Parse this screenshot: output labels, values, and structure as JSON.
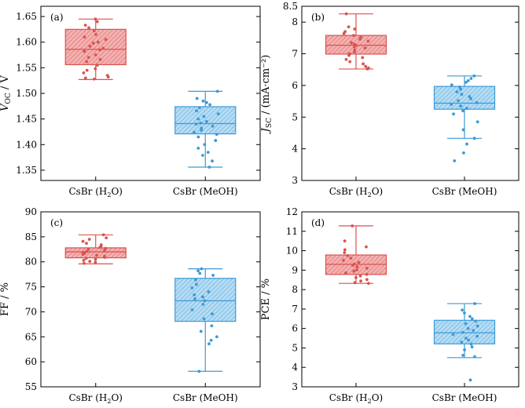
{
  "chart_data": [
    {
      "type": "box",
      "panel_label": "(a)",
      "ylabel": {
        "main": "V",
        "sub": "OC",
        "unit": " / V"
      },
      "ylim": [
        1.33,
        1.67
      ],
      "yticks": [
        1.35,
        1.4,
        1.45,
        1.5,
        1.55,
        1.6,
        1.65
      ],
      "tick_decimals": 2,
      "categories": [
        {
          "main": "CsBr (H",
          "sub": "2",
          "tail": "O)"
        },
        {
          "main": "CsBr (MeOH)",
          "sub": "",
          "tail": ""
        }
      ],
      "series": [
        {
          "color": "#d9534f",
          "fill": "#f0a0a0",
          "min": 1.527,
          "q1": 1.556,
          "median": 1.586,
          "q3": 1.625,
          "max": 1.645,
          "points": [
            1.645,
            1.64,
            1.633,
            1.628,
            1.622,
            1.615,
            1.61,
            1.605,
            1.6,
            1.598,
            1.592,
            1.588,
            1.585,
            1.582,
            1.575,
            1.57,
            1.566,
            1.562,
            1.555,
            1.548,
            1.545,
            1.54,
            1.535,
            1.532,
            1.53,
            1.528
          ]
        },
        {
          "color": "#3b9ad6",
          "fill": "#a8d4f0",
          "min": 1.356,
          "q1": 1.421,
          "median": 1.441,
          "q3": 1.474,
          "max": 1.504,
          "points": [
            1.504,
            1.49,
            1.485,
            1.482,
            1.478,
            1.472,
            1.466,
            1.46,
            1.455,
            1.45,
            1.445,
            1.442,
            1.44,
            1.436,
            1.432,
            1.428,
            1.424,
            1.42,
            1.415,
            1.408,
            1.4,
            1.393,
            1.385,
            1.379,
            1.368,
            1.356
          ]
        }
      ]
    },
    {
      "type": "box",
      "panel_label": "(b)",
      "ylabel": {
        "main": "J",
        "sub": "SC",
        "unit": " / (mA·cm⁻²)"
      },
      "ylim": [
        3.0,
        8.5
      ],
      "yticks": [
        3,
        4,
        5,
        6,
        7,
        8,
        8.5
      ],
      "tick_decimals": 0,
      "categories": [
        {
          "main": "CsBr (H",
          "sub": "2",
          "tail": "O)"
        },
        {
          "main": "CsBr (MeOH)",
          "sub": "",
          "tail": ""
        }
      ],
      "series": [
        {
          "color": "#d9534f",
          "fill": "#f0a0a0",
          "min": 6.52,
          "q1": 6.99,
          "median": 7.27,
          "q3": 7.58,
          "max": 8.26,
          "points": [
            8.26,
            7.85,
            7.78,
            7.7,
            7.64,
            7.58,
            7.52,
            7.46,
            7.4,
            7.35,
            7.3,
            7.26,
            7.22,
            7.18,
            7.12,
            7.06,
            7.0,
            6.95,
            6.88,
            6.82,
            6.75,
            6.68,
            6.6,
            6.55,
            6.52
          ]
        },
        {
          "color": "#3b9ad6",
          "fill": "#a8d4f0",
          "min": 4.33,
          "q1": 5.25,
          "median": 5.44,
          "q3": 5.97,
          "max": 6.3,
          "points": [
            6.3,
            6.22,
            6.15,
            6.1,
            6.02,
            5.95,
            5.88,
            5.8,
            5.72,
            5.65,
            5.58,
            5.52,
            5.46,
            5.4,
            5.35,
            5.28,
            5.2,
            5.1,
            4.85,
            4.6,
            4.33,
            4.15,
            3.87,
            3.62
          ]
        }
      ]
    },
    {
      "type": "box",
      "panel_label": "(c)",
      "ylabel": {
        "main": "FF / %",
        "sub": "",
        "unit": ""
      },
      "ylim": [
        55,
        90
      ],
      "yticks": [
        55,
        60,
        65,
        70,
        75,
        80,
        85,
        90
      ],
      "tick_decimals": 0,
      "categories": [
        {
          "main": "CsBr (H",
          "sub": "2",
          "tail": "O)"
        },
        {
          "main": "CsBr (MeOH)",
          "sub": "",
          "tail": ""
        }
      ],
      "series": [
        {
          "color": "#d9534f",
          "fill": "#f0a0a0",
          "min": 79.6,
          "q1": 80.8,
          "median": 82.0,
          "q3": 82.8,
          "max": 85.4,
          "points": [
            85.4,
            84.8,
            84.5,
            84.1,
            83.7,
            83.4,
            83.1,
            82.9,
            82.7,
            82.5,
            82.3,
            82.1,
            81.9,
            81.7,
            81.5,
            81.3,
            81.1,
            80.9,
            80.7,
            80.5,
            80.3,
            80.1,
            79.9,
            79.7
          ]
        },
        {
          "color": "#3b9ad6",
          "fill": "#a8d4f0",
          "min": 58.1,
          "q1": 68.1,
          "median": 72.2,
          "q3": 76.7,
          "max": 78.6,
          "points": [
            78.6,
            78.2,
            77.7,
            77.3,
            76.4,
            75.5,
            74.8,
            74.0,
            73.4,
            73.0,
            72.6,
            72.2,
            71.5,
            70.4,
            69.6,
            68.6,
            67.2,
            66.1,
            65.0,
            64.3,
            63.6,
            58.1
          ]
        }
      ]
    },
    {
      "type": "box",
      "panel_label": "(d)",
      "ylabel": {
        "main": "PCE / %",
        "sub": "",
        "unit": ""
      },
      "ylim": [
        3,
        12
      ],
      "yticks": [
        3,
        4,
        5,
        6,
        7,
        8,
        9,
        10,
        11,
        12
      ],
      "tick_decimals": 0,
      "categories": [
        {
          "main": "CsBr (H",
          "sub": "2",
          "tail": "O)"
        },
        {
          "main": "CsBr (MeOH)",
          "sub": "",
          "tail": ""
        }
      ],
      "series": [
        {
          "color": "#d9534f",
          "fill": "#f0a0a0",
          "min": 8.32,
          "q1": 8.78,
          "median": 9.3,
          "q3": 9.78,
          "max": 11.28,
          "points": [
            11.28,
            10.5,
            10.2,
            10.05,
            9.9,
            9.75,
            9.62,
            9.5,
            9.4,
            9.32,
            9.25,
            9.18,
            9.1,
            9.02,
            8.95,
            8.86,
            8.78,
            8.7,
            8.62,
            8.52,
            8.44,
            8.36,
            8.32
          ]
        },
        {
          "color": "#3b9ad6",
          "fill": "#a8d4f0",
          "min": 4.5,
          "q1": 5.21,
          "median": 5.78,
          "q3": 6.42,
          "max": 7.28,
          "points": [
            7.28,
            6.95,
            6.8,
            6.62,
            6.5,
            6.38,
            6.25,
            6.12,
            6.0,
            5.9,
            5.8,
            5.7,
            5.6,
            5.5,
            5.4,
            5.3,
            5.2,
            5.05,
            4.9,
            4.62,
            4.55,
            3.35
          ]
        }
      ]
    }
  ]
}
